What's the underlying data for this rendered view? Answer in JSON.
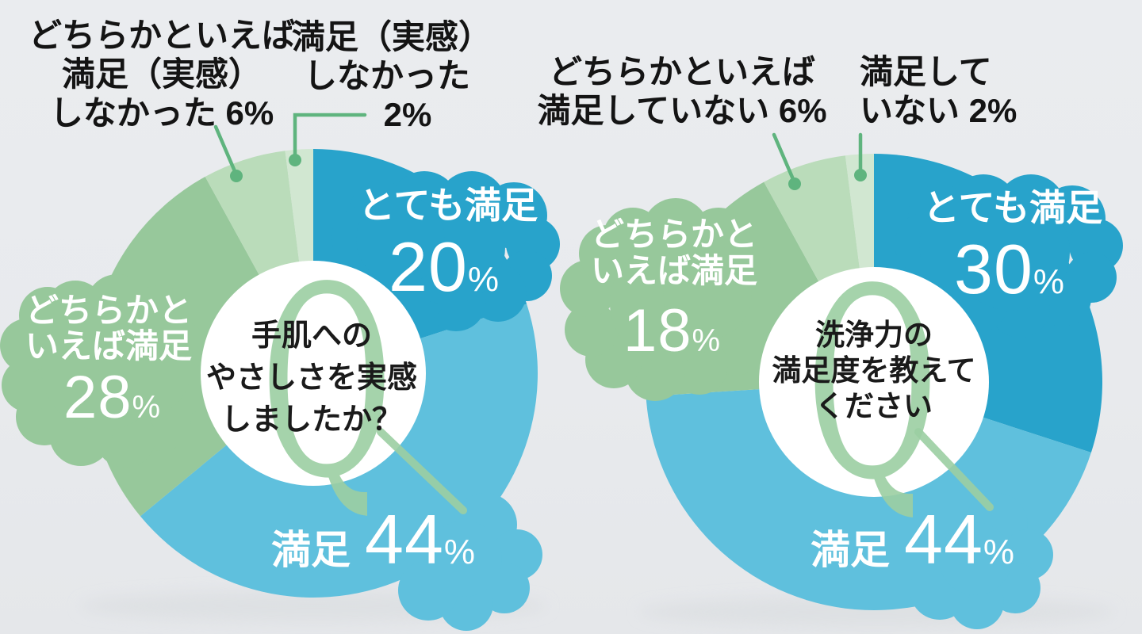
{
  "palette": {
    "background": "#e8eaed",
    "callout_line": "#5fb47e",
    "q_mark_color": "#9ccfa3",
    "center_text_color": "#1a1a1a",
    "shadow": "#d8dbde"
  },
  "chart_data": [
    {
      "type": "pie",
      "style": "donut",
      "direction": "clockwise",
      "start_angle_deg": 0,
      "question_lines": [
        "手肌への",
        "やさしさを実感",
        "しましたか？"
      ],
      "center_mark": "Q",
      "segments": [
        {
          "label": "とても満足",
          "value": 20,
          "unit": "%",
          "color": "#28a3cb",
          "label_color": "#ffffff"
        },
        {
          "label": "満足",
          "value": 44,
          "unit": "%",
          "color": "#5fc0dd",
          "label_color": "#ffffff"
        },
        {
          "label": "どちらかといえば満足",
          "label_lines": [
            "どちらかと",
            "いえば満足"
          ],
          "value": 28,
          "unit": "%",
          "color": "#97c89b",
          "label_color": "#ffffff"
        },
        {
          "label": "どちらかといえば満足（実感）しなかった",
          "value": 6,
          "unit": "%",
          "color": "#badcba",
          "label_color": "#141414"
        },
        {
          "label": "満足（実感）しなかった",
          "value": 2,
          "unit": "%",
          "color": "#d1e7d1",
          "label_color": "#141414"
        }
      ],
      "callout_labels": [
        {
          "lines": [
            "どちらかといえば",
            "満足（実感）",
            "しなかった 6%"
          ]
        },
        {
          "lines": [
            "満足（実感）",
            "しなかった",
            "2%"
          ]
        }
      ]
    },
    {
      "type": "pie",
      "style": "donut",
      "direction": "clockwise",
      "start_angle_deg": 0,
      "question_lines": [
        "洗浄力の",
        "満足度を教えて",
        "ください"
      ],
      "center_mark": "Q",
      "segments": [
        {
          "label": "とても満足",
          "value": 30,
          "unit": "%",
          "color": "#28a3cb",
          "label_color": "#ffffff"
        },
        {
          "label": "満足",
          "value": 44,
          "unit": "%",
          "color": "#5fc0dd",
          "label_color": "#ffffff"
        },
        {
          "label": "どちらかといえば満足",
          "label_lines": [
            "どちらかと",
            "いえば満足"
          ],
          "value": 18,
          "unit": "%",
          "color": "#97c89b",
          "label_color": "#ffffff"
        },
        {
          "label": "どちらかといえば満足していない",
          "value": 6,
          "unit": "%",
          "color": "#badcba",
          "label_color": "#141414"
        },
        {
          "label": "満足していない",
          "value": 2,
          "unit": "%",
          "color": "#d1e7d1",
          "label_color": "#141414"
        }
      ],
      "callout_labels": [
        {
          "lines": [
            "どちらかといえば",
            "満足していない 6%"
          ]
        },
        {
          "lines": [
            "満足して",
            "いない 2%"
          ]
        }
      ]
    }
  ]
}
